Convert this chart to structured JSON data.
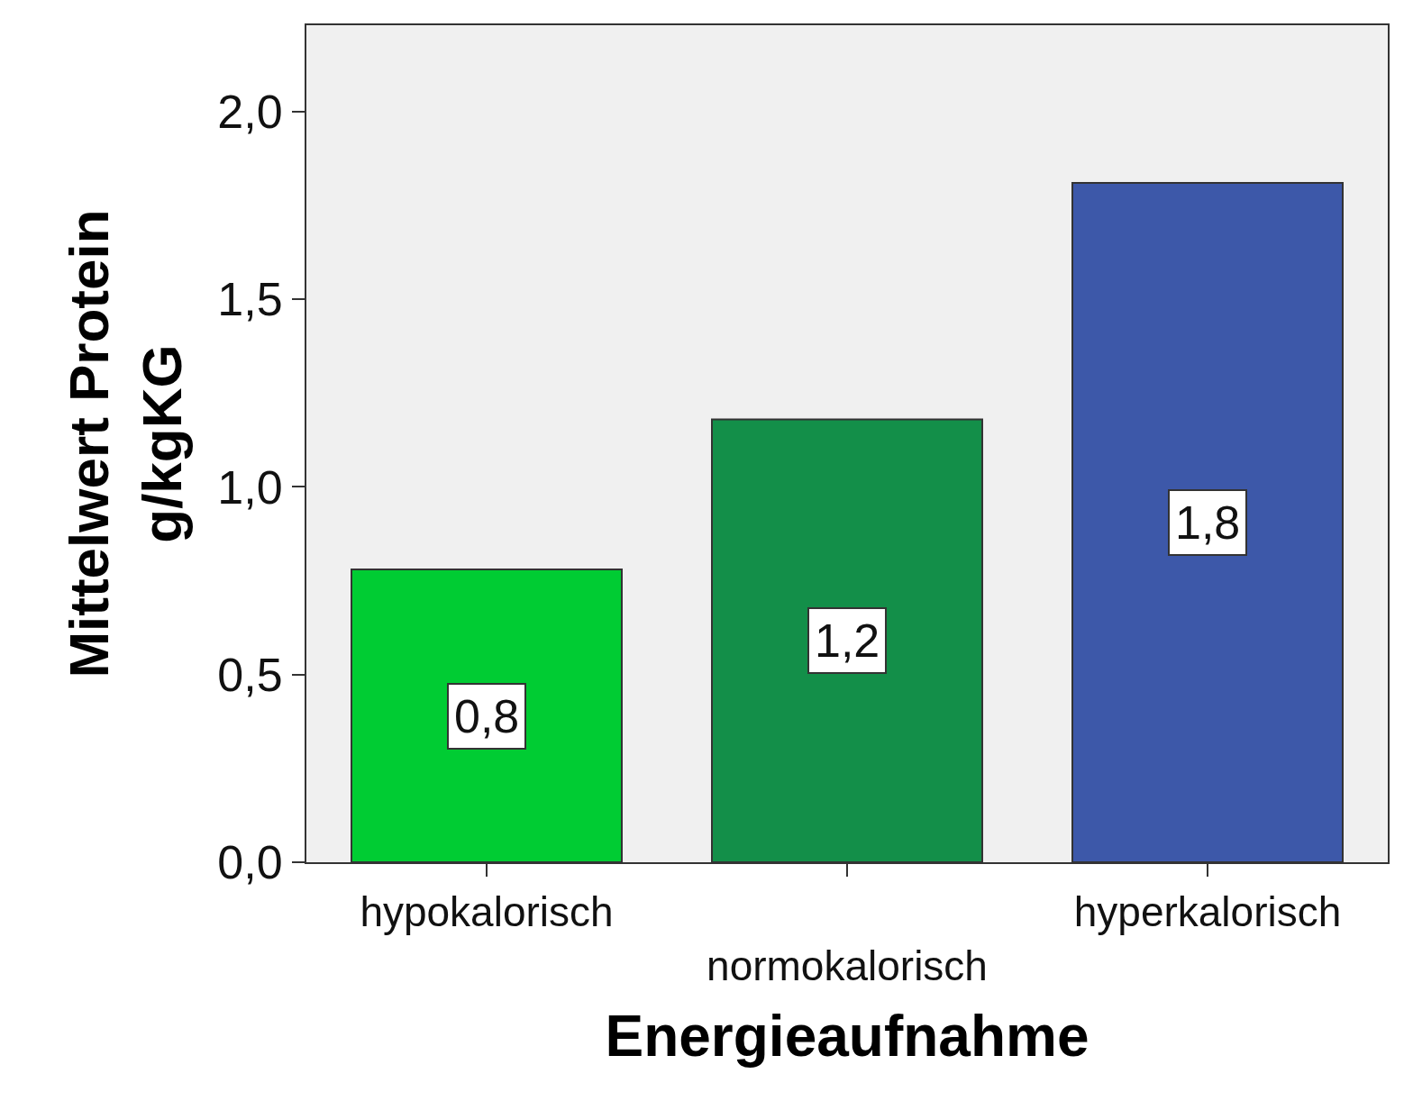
{
  "chart_data": {
    "type": "bar",
    "xlabel": "Energieaufnahme",
    "ylabel": "Mittelwert Protein g/kgKG",
    "categories": [
      "hypokalorisch",
      "normokalorisch",
      "hyperkalorisch"
    ],
    "values": [
      0.78,
      1.18,
      1.81
    ],
    "colors": [
      "#00cc33",
      "#138f49",
      "#3d58a9"
    ],
    "value_labels": [
      "0,8",
      "1,2",
      "1,8"
    ],
    "ylim": [
      0,
      2.23
    ],
    "yticks": [
      {
        "value": 0,
        "label": "0,0"
      },
      {
        "value": 0.5,
        "label": "0,5"
      },
      {
        "value": 1,
        "label": "1,0"
      },
      {
        "value": 1.5,
        "label": "1,5"
      },
      {
        "value": 2,
        "label": "2,0"
      }
    ],
    "grid": false
  }
}
